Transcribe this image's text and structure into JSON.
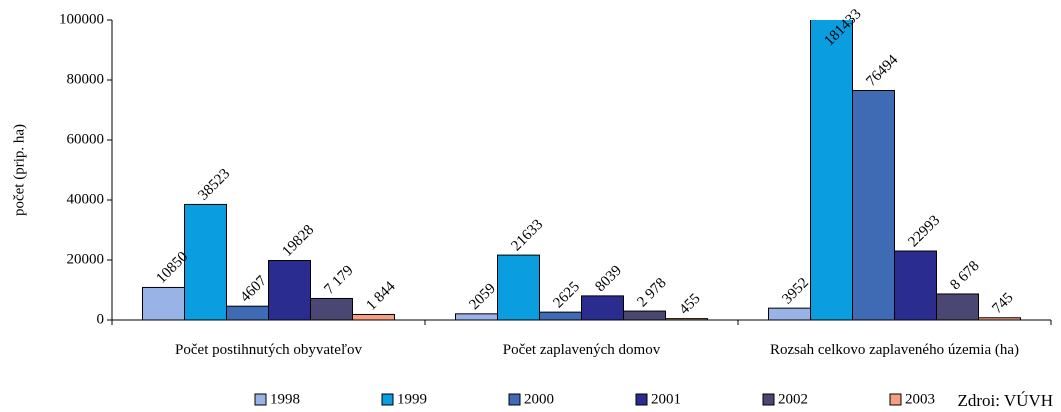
{
  "chart_data": {
    "type": "bar",
    "categories": [
      "Počet postihnutých obyvateľov",
      "Počet zaplavených domov",
      "Rozsah celkovo zaplaveného územia (ha)"
    ],
    "ylabel": "počet (prip. ha)",
    "source": "Zdroi: VÚVH",
    "ylim": [
      0,
      100000
    ],
    "yticks": [
      0,
      20000,
      40000,
      60000,
      80000,
      100000
    ],
    "series": [
      {
        "name": "1998",
        "color": "#99b3e6",
        "values": [
          10850,
          2059,
          3952
        ],
        "value_labels": [
          "10850",
          "2059",
          "3952"
        ]
      },
      {
        "name": "1999",
        "color": "#0a9de0",
        "values": [
          38523,
          21633,
          181433
        ],
        "value_labels": [
          "38523",
          "21633",
          "181433"
        ]
      },
      {
        "name": "2000",
        "color": "#3f6bb5",
        "values": [
          4607,
          2625,
          76494
        ],
        "value_labels": [
          "4607",
          "2625",
          "76494"
        ]
      },
      {
        "name": "2001",
        "color": "#2b2c8f",
        "values": [
          19828,
          8039,
          22993
        ],
        "value_labels": [
          "19828",
          "8039",
          "22993"
        ]
      },
      {
        "name": "2002",
        "color": "#4a4872",
        "values": [
          7179,
          2978,
          8678
        ],
        "value_labels": [
          "7 179",
          "2 978",
          "8 678"
        ]
      },
      {
        "name": "2003",
        "color": "#f4a080",
        "values": [
          1844,
          455,
          745
        ],
        "value_labels": [
          "1 844",
          "455",
          "745"
        ]
      }
    ]
  }
}
